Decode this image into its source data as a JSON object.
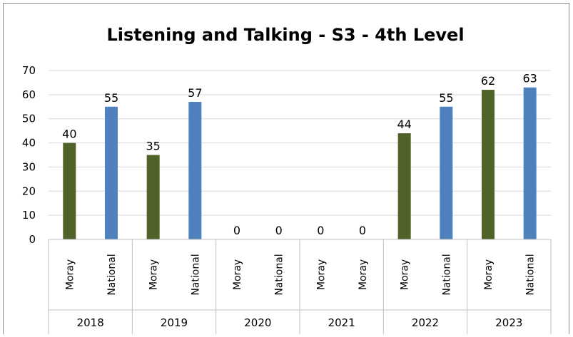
{
  "chart_data": {
    "type": "bar",
    "title": "Listening and Talking - S3 - 4th Level",
    "xlabel": "",
    "ylabel": "",
    "ylim": [
      0,
      70
    ],
    "yticks": [
      0,
      10,
      20,
      30,
      40,
      50,
      60,
      70
    ],
    "grid": true,
    "legend": "none",
    "groups": [
      {
        "label": "2018",
        "bars": [
          {
            "category": "Moray",
            "value": 40
          },
          {
            "category": "National",
            "value": 55
          }
        ]
      },
      {
        "label": "2019",
        "bars": [
          {
            "category": "Moray",
            "value": 35
          },
          {
            "category": "National",
            "value": 57
          }
        ]
      },
      {
        "label": "2020",
        "bars": [
          {
            "category": "Moray",
            "value": 0
          },
          {
            "category": "National",
            "value": 0
          }
        ]
      },
      {
        "label": "2021",
        "bars": [
          {
            "category": "Moray",
            "value": 0
          },
          {
            "category": "Moray",
            "value": 0
          }
        ]
      },
      {
        "label": "2022",
        "bars": [
          {
            "category": "Moray",
            "value": 44
          },
          {
            "category": "National",
            "value": 55
          }
        ]
      },
      {
        "label": "2023",
        "bars": [
          {
            "category": "Moray",
            "value": 62
          },
          {
            "category": "National",
            "value": 63
          }
        ]
      }
    ],
    "colors": {
      "Moray": "#4f6228",
      "National": "#4f81bd"
    }
  }
}
